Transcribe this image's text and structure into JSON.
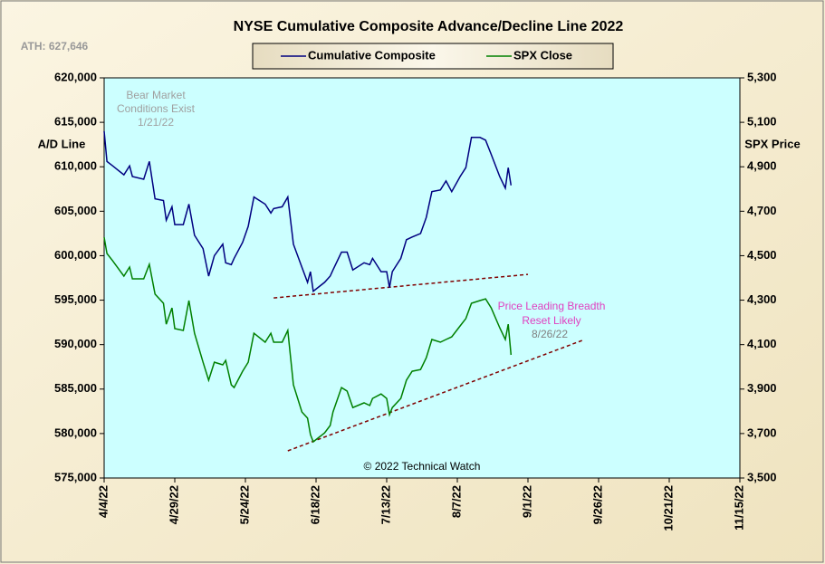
{
  "chart_data": {
    "type": "line",
    "title": "NYSE Cumulative  Composite  Advance/Decline  Line  2022",
    "y_label": "A/D Line",
    "y2_label": "SPX Price",
    "background": "#ccffff",
    "annotations": [
      {
        "text": "ATH: 627,646",
        "color": "#999999"
      },
      {
        "text": "Bear Market",
        "color": "#a0a0a0"
      },
      {
        "text": "Conditions  Exist",
        "color": "#a0a0a0"
      },
      {
        "text": "1/21/22",
        "color": "#a0a0a0"
      },
      {
        "text": "Price Leading  Breadth",
        "color": "#e040c0"
      },
      {
        "text": "Reset  Likely",
        "color": "#e040c0"
      },
      {
        "text": "8/26/22",
        "color": "#808080"
      },
      {
        "text": "© 2022 Technical  Watch",
        "color": "#000000"
      }
    ],
    "x": [
      "4/4/22",
      "4/5/22",
      "4/7/22",
      "4/11/22",
      "4/13/22",
      "4/14/22",
      "4/18/22",
      "4/20/22",
      "4/22/22",
      "4/25/22",
      "4/26/22",
      "4/28/22",
      "4/29/22",
      "5/2/22",
      "5/4/22",
      "5/6/22",
      "5/9/22",
      "5/11/22",
      "5/13/22",
      "5/16/22",
      "5/17/22",
      "5/19/22",
      "5/20/22",
      "5/23/22",
      "5/25/22",
      "5/27/22",
      "5/31/22",
      "6/2/22",
      "6/3/22",
      "6/6/22",
      "6/8/22",
      "6/10/22",
      "6/13/22",
      "6/15/22",
      "6/16/22",
      "6/17/22",
      "6/21/22",
      "6/23/22",
      "6/24/22",
      "6/27/22",
      "6/29/22",
      "7/1/22",
      "7/5/22",
      "7/7/22",
      "7/8/22",
      "7/11/22",
      "7/13/22",
      "7/14/22",
      "7/15/22",
      "7/18/22",
      "7/20/22",
      "7/22/22",
      "7/25/22",
      "7/27/22",
      "7/29/22",
      "8/1/22",
      "8/3/22",
      "8/5/22",
      "8/8/22",
      "8/10/22",
      "8/12/22",
      "8/15/22",
      "8/17/22",
      "8/19/22",
      "8/22/22",
      "8/24/22",
      "8/25/22",
      "8/26/22"
    ],
    "series": [
      {
        "name": "Cumulative Composite",
        "color": "#000080",
        "axis": "y",
        "values": [
          614000,
          610600,
          610100,
          609100,
          610100,
          608900,
          608600,
          610600,
          606400,
          606200,
          604000,
          605500,
          603500,
          603500,
          605800,
          602300,
          600800,
          597700,
          600000,
          601300,
          599200,
          599000,
          599700,
          601500,
          603300,
          606600,
          605800,
          604800,
          605300,
          605500,
          606600,
          601300,
          598700,
          597000,
          598200,
          596000,
          597000,
          597700,
          598400,
          600400,
          600400,
          598400,
          599200,
          599000,
          599700,
          598200,
          598200,
          596400,
          598200,
          599700,
          601800,
          602100,
          602500,
          604300,
          607200,
          607400,
          608400,
          607200,
          608900,
          609900,
          613300,
          613300,
          613000,
          611400,
          608900,
          607600,
          609900,
          607900
        ]
      },
      {
        "name": "SPX Close",
        "color": "#008000",
        "axis": "y2",
        "values": [
          4583,
          4510,
          4477,
          4408,
          4449,
          4396,
          4396,
          4461,
          4327,
          4286,
          4192,
          4265,
          4172,
          4164,
          4298,
          4151,
          4021,
          3940,
          4021,
          4009,
          4029,
          3919,
          3907,
          3980,
          4021,
          4151,
          4111,
          4151,
          4111,
          4111,
          4164,
          3919,
          3797,
          3769,
          3695,
          3663,
          3703,
          3736,
          3797,
          3907,
          3891,
          3817,
          3838,
          3826,
          3858,
          3878,
          3858,
          3785,
          3817,
          3858,
          3940,
          3980,
          3988,
          4041,
          4123,
          4111,
          4123,
          4135,
          4184,
          4217,
          4286,
          4298,
          4306,
          4265,
          4176,
          4123,
          4192,
          4054
        ]
      }
    ],
    "trendlines": [
      {
        "color": "#800000",
        "x": [
          "6/3/22",
          "9/1/22"
        ],
        "values": [
          595250,
          597900
        ]
      },
      {
        "color": "#800000",
        "x": [
          "6/8/22",
          "9/21/22"
        ],
        "values": [
          578050,
          590570
        ]
      }
    ],
    "xlim": [
      "4/4/22",
      "11/15/22"
    ],
    "xticks": [
      "4/4/22",
      "4/29/22",
      "5/24/22",
      "6/18/22",
      "7/13/22",
      "8/7/22",
      "9/1/22",
      "9/26/22",
      "10/21/22",
      "11/15/22"
    ],
    "ylim": [
      575000,
      620000
    ],
    "yticks": [
      {
        "value": 575000,
        "label": "575,000"
      },
      {
        "value": 580000,
        "label": "580,000"
      },
      {
        "value": 585000,
        "label": "585,000"
      },
      {
        "value": 590000,
        "label": "590,000"
      },
      {
        "value": 595000,
        "label": "595,000"
      },
      {
        "value": 600000,
        "label": "600,000"
      },
      {
        "value": 605000,
        "label": "605,000"
      },
      {
        "value": 610000,
        "label": "610,000"
      },
      {
        "value": 615000,
        "label": "615,000"
      },
      {
        "value": 620000,
        "label": "620,000"
      }
    ],
    "y2lim": [
      3500,
      5300
    ],
    "y2ticks": [
      {
        "value": 3500,
        "label": "3,500"
      },
      {
        "value": 3700,
        "label": "3,700"
      },
      {
        "value": 3900,
        "label": "3,900"
      },
      {
        "value": 4100,
        "label": "4,100"
      },
      {
        "value": 4300,
        "label": "4,300"
      },
      {
        "value": 4500,
        "label": "4,500"
      },
      {
        "value": 4700,
        "label": "4,700"
      },
      {
        "value": 4900,
        "label": "4,900"
      },
      {
        "value": 5100,
        "label": "5,100"
      },
      {
        "value": 5300,
        "label": "5,300"
      }
    ],
    "legend": "top"
  }
}
